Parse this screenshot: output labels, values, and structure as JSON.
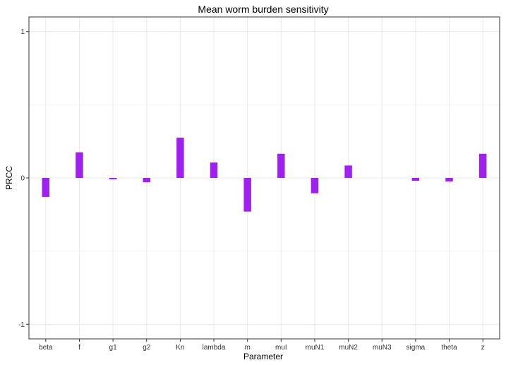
{
  "chart_data": {
    "type": "bar",
    "title": "Mean worm burden sensitivity",
    "xlabel": "Parameter",
    "ylabel": "PRCC",
    "categories": [
      "beta",
      "f",
      "g1",
      "g2",
      "Kn",
      "lambda",
      "m",
      "muI",
      "muN1",
      "muN2",
      "muN3",
      "sigma",
      "theta",
      "z"
    ],
    "values": [
      -0.13,
      0.175,
      -0.01,
      -0.03,
      0.275,
      0.105,
      -0.23,
      0.165,
      -0.105,
      0.085,
      0.0,
      -0.02,
      -0.025,
      0.165
    ],
    "ylim": [
      -1.1,
      1.1
    ],
    "yticks": [
      -1,
      0,
      1
    ],
    "grid": true,
    "bar_color": "#A020F0",
    "panel_border_color": "#333333",
    "grid_color": "#EBEBEB"
  }
}
